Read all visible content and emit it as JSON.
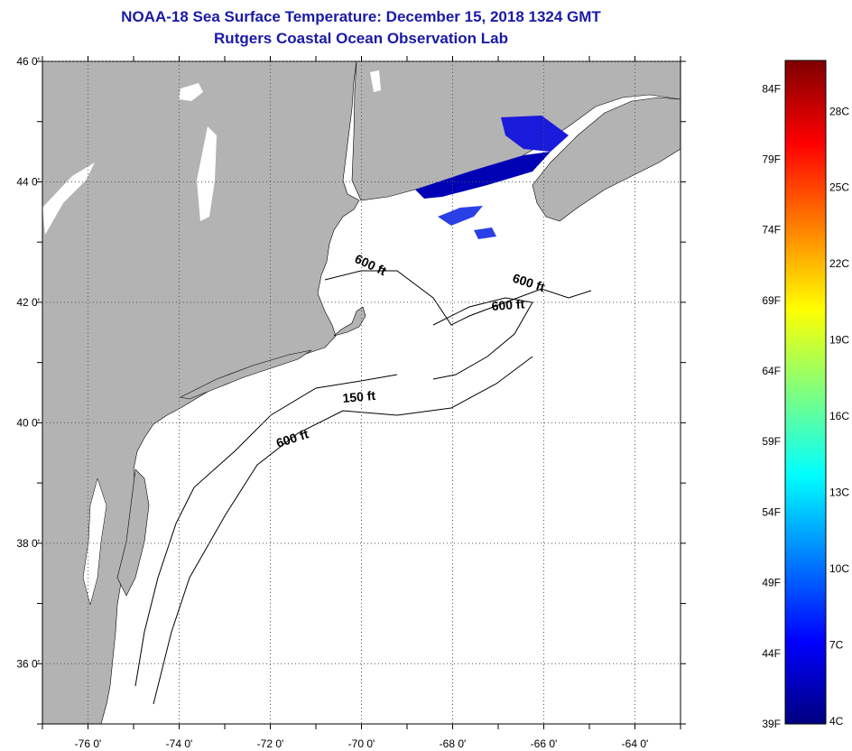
{
  "header": {
    "title": "NOAA-18 Sea Surface Temperature:  December 15, 2018 1324 GMT",
    "subtitle": "Rutgers Coastal Ocean Observation Lab"
  },
  "map": {
    "lon_range": [
      -77,
      -63
    ],
    "lat_range": [
      35,
      46
    ],
    "lat_ticks": [
      {
        "value": 46,
        "label": "46 0'"
      },
      {
        "value": 44,
        "label": "44 0'"
      },
      {
        "value": 42,
        "label": "42 0'"
      },
      {
        "value": 40,
        "label": "40 0'"
      },
      {
        "value": 38,
        "label": "38 0'"
      },
      {
        "value": 36,
        "label": "36 0'"
      }
    ],
    "lon_ticks": [
      {
        "value": -76,
        "label": "-76 0'"
      },
      {
        "value": -74,
        "label": "-74 0'"
      },
      {
        "value": -72,
        "label": "-72 0'"
      },
      {
        "value": -70,
        "label": "-70 0'"
      },
      {
        "value": -68,
        "label": "-68 0'"
      },
      {
        "value": -66,
        "label": "-66 0'"
      },
      {
        "value": -64,
        "label": "-64 0'"
      }
    ],
    "contour_labels": [
      "600 ft",
      "600 ft",
      "600 ft",
      "150 ft",
      "600 ft"
    ],
    "land_color": "#b3b3b3",
    "ocean_color": "#ffffff",
    "sst_colors": [
      "#1a1adb",
      "#0000b4",
      "#2a3fe6"
    ]
  },
  "colorbar": {
    "f_labels": [
      "84F",
      "79F",
      "74F",
      "69F",
      "64F",
      "59F",
      "54F",
      "49F",
      "44F",
      "39F"
    ],
    "c_labels": [
      "28C",
      "25C",
      "22C",
      "19C",
      "16C",
      "13C",
      "10C",
      "7C",
      "4C"
    ],
    "range_f": [
      39,
      86
    ],
    "colors": [
      "#00007f",
      "#0000ff",
      "#007fff",
      "#00ffff",
      "#7fff7f",
      "#ffff00",
      "#ff7f00",
      "#ff0000",
      "#7f0000"
    ]
  }
}
